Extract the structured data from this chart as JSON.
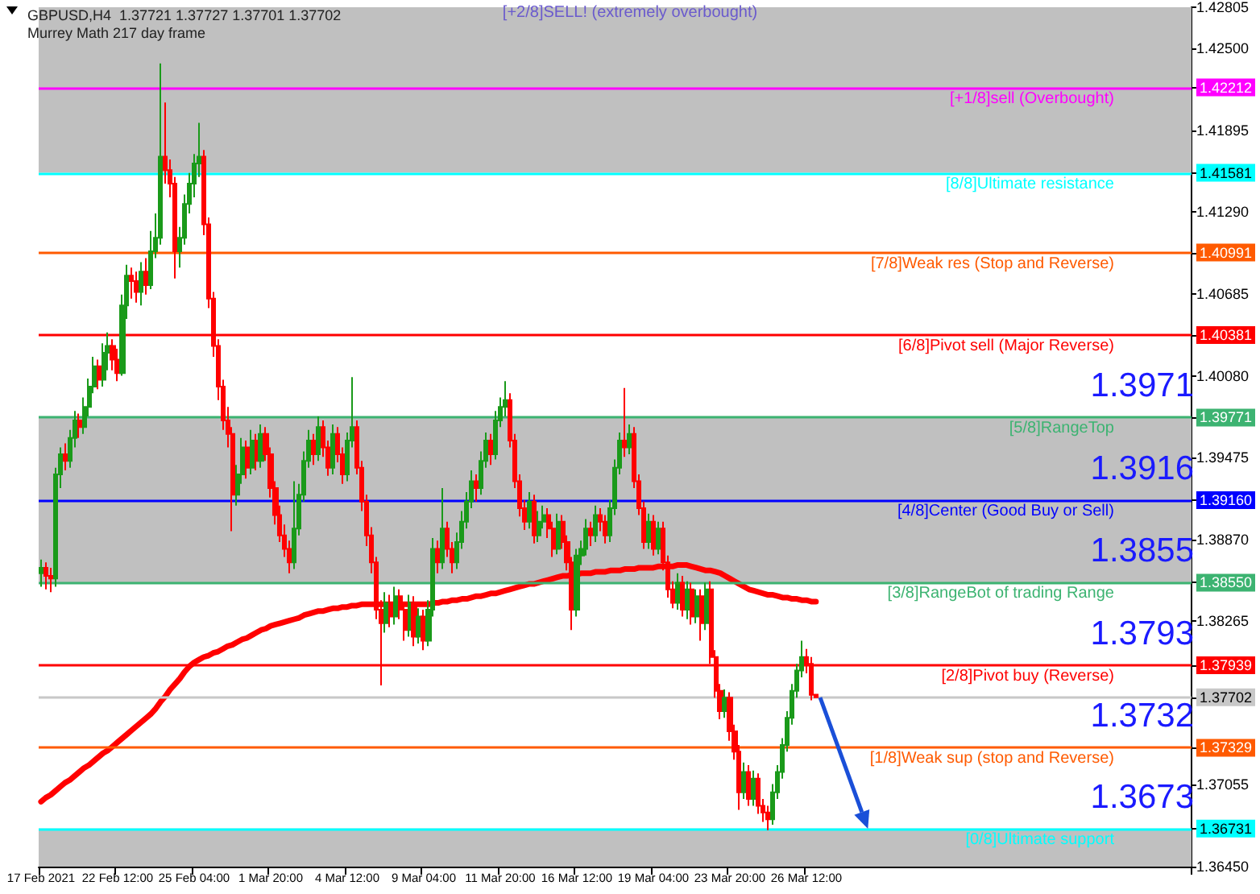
{
  "chart_data": {
    "type": "candlestick",
    "title": "GBPUSD,H4  1.37721 1.37727 1.37701 1.37702",
    "subtitle": "Murrey Math 217 day frame",
    "categories": [
      "17 Feb 2021",
      null,
      null,
      null,
      null,
      null,
      null,
      null,
      null,
      null,
      null,
      null,
      null,
      null,
      null,
      null,
      "22 Feb 12:00",
      null,
      null,
      null,
      null,
      null,
      null,
      null,
      null,
      null,
      null,
      null,
      null,
      null,
      null,
      null,
      "25 Feb 04:00",
      null,
      null,
      null,
      null,
      null,
      null,
      null,
      null,
      null,
      null,
      null,
      null,
      null,
      null,
      null,
      "1 Mar 20:00",
      null,
      null,
      null,
      null,
      null,
      null,
      null,
      null,
      null,
      null,
      null,
      null,
      null,
      null,
      null,
      "4 Mar 12:00",
      null,
      null,
      null,
      null,
      null,
      null,
      null,
      null,
      null,
      null,
      null,
      null,
      null,
      null,
      null,
      "9 Mar 04:00",
      null,
      null,
      null,
      null,
      null,
      null,
      null,
      null,
      null,
      null,
      null,
      null,
      null,
      null,
      null,
      "11 Mar 20:00",
      null,
      null,
      null,
      null,
      null,
      null,
      null,
      null,
      null,
      null,
      null,
      null,
      null,
      null,
      null,
      "16 Mar 12:00",
      null,
      null,
      null,
      null,
      null,
      null,
      null,
      null,
      null,
      null,
      null,
      null,
      null,
      null,
      null,
      "19 Mar 04:00",
      null,
      null,
      null,
      null,
      null,
      null,
      null,
      null,
      null,
      null,
      null,
      null,
      null,
      null,
      null,
      "23 Mar 20:00",
      null,
      null,
      null,
      null,
      null,
      null,
      null,
      null,
      null,
      null,
      null,
      null,
      null,
      null,
      null,
      "26 Mar 12:00",
      null,
      null
    ],
    "ohlc": [
      [
        1.3862,
        1.3872,
        1.3852,
        1.3866
      ],
      [
        1.3866,
        1.387,
        1.385,
        1.386
      ],
      [
        1.386,
        1.3866,
        1.3848,
        1.3858
      ],
      [
        1.3858,
        1.394,
        1.3852,
        1.3935
      ],
      [
        1.3935,
        1.3955,
        1.3925,
        1.395
      ],
      [
        1.395,
        1.3958,
        1.3938,
        1.3945
      ],
      [
        1.3945,
        1.3968,
        1.394,
        1.3962
      ],
      [
        1.3962,
        1.3982,
        1.3955,
        1.3975
      ],
      [
        1.3975,
        1.398,
        1.3962,
        1.397
      ],
      [
        1.397,
        1.3992,
        1.3965,
        1.3985
      ],
      [
        1.3985,
        1.4006,
        1.3978,
        1.4
      ],
      [
        1.4,
        1.4022,
        1.3995,
        1.4015
      ],
      [
        1.4015,
        1.402,
        1.3998,
        1.4005
      ],
      [
        1.4005,
        1.4032,
        1.4,
        1.4025
      ],
      [
        1.4025,
        1.404,
        1.4012,
        1.403
      ],
      [
        1.403,
        1.4035,
        1.4012,
        1.402
      ],
      [
        1.402,
        1.4028,
        1.4004,
        1.401
      ],
      [
        1.401,
        1.4068,
        1.4008,
        1.406
      ],
      [
        1.406,
        1.409,
        1.405,
        1.4082
      ],
      [
        1.4082,
        1.4088,
        1.4065,
        1.4078
      ],
      [
        1.4078,
        1.4085,
        1.4062,
        1.407
      ],
      [
        1.407,
        1.4092,
        1.406,
        1.4085
      ],
      [
        1.4085,
        1.4095,
        1.4068,
        1.4075
      ],
      [
        1.4075,
        1.4115,
        1.4072,
        1.41
      ],
      [
        1.41,
        1.4128,
        1.4095,
        1.411
      ],
      [
        1.411,
        1.4239,
        1.4105,
        1.417
      ],
      [
        1.417,
        1.421,
        1.415,
        1.416
      ],
      [
        1.416,
        1.4168,
        1.414,
        1.415
      ],
      [
        1.415,
        1.4155,
        1.408,
        1.41
      ],
      [
        1.41,
        1.4118,
        1.4088,
        1.411
      ],
      [
        1.411,
        1.4142,
        1.4105,
        1.4135
      ],
      [
        1.4135,
        1.4158,
        1.4128,
        1.415
      ],
      [
        1.415,
        1.4172,
        1.414,
        1.4165
      ],
      [
        1.4165,
        1.4195,
        1.4155,
        1.417
      ],
      [
        1.417,
        1.4175,
        1.4112,
        1.412
      ],
      [
        1.412,
        1.4125,
        1.4058,
        1.4065
      ],
      [
        1.4065,
        1.407,
        1.4022,
        1.403
      ],
      [
        1.403,
        1.4035,
        1.399,
        1.4
      ],
      [
        1.4,
        1.4005,
        1.3968,
        1.3975
      ],
      [
        1.3975,
        1.3985,
        1.3955,
        1.3965
      ],
      [
        1.3965,
        1.397,
        1.3893,
        1.392
      ],
      [
        1.392,
        1.3942,
        1.3912,
        1.3935
      ],
      [
        1.3935,
        1.3962,
        1.3928,
        1.3955
      ],
      [
        1.3955,
        1.396,
        1.3932,
        1.394
      ],
      [
        1.394,
        1.3968,
        1.3935,
        1.396
      ],
      [
        1.396,
        1.3965,
        1.3938,
        1.3945
      ],
      [
        1.3945,
        1.3972,
        1.394,
        1.3965
      ],
      [
        1.3965,
        1.397,
        1.3945,
        1.395
      ],
      [
        1.395,
        1.3955,
        1.3918,
        1.3925
      ],
      [
        1.3925,
        1.393,
        1.3898,
        1.3905
      ],
      [
        1.3905,
        1.3912,
        1.3885,
        1.389
      ],
      [
        1.389,
        1.3898,
        1.3874,
        1.388
      ],
      [
        1.388,
        1.3886,
        1.3862,
        1.387
      ],
      [
        1.387,
        1.393,
        1.3865,
        1.3895
      ],
      [
        1.3895,
        1.3928,
        1.389,
        1.392
      ],
      [
        1.392,
        1.3952,
        1.3915,
        1.3945
      ],
      [
        1.3945,
        1.3968,
        1.394,
        1.396
      ],
      [
        1.396,
        1.3965,
        1.3942,
        1.395
      ],
      [
        1.395,
        1.3978,
        1.3945,
        1.397
      ],
      [
        1.397,
        1.3975,
        1.3948,
        1.3955
      ],
      [
        1.3955,
        1.396,
        1.3934,
        1.394
      ],
      [
        1.394,
        1.3972,
        1.3935,
        1.3965
      ],
      [
        1.3965,
        1.397,
        1.3944,
        1.395
      ],
      [
        1.395,
        1.3955,
        1.3928,
        1.3935
      ],
      [
        1.3935,
        1.3966,
        1.393,
        1.396
      ],
      [
        1.396,
        1.4007,
        1.3955,
        1.397
      ],
      [
        1.397,
        1.3975,
        1.3935,
        1.394
      ],
      [
        1.394,
        1.3945,
        1.3908,
        1.3915
      ],
      [
        1.3915,
        1.392,
        1.3882,
        1.389
      ],
      [
        1.389,
        1.3896,
        1.3862,
        1.387
      ],
      [
        1.387,
        1.3874,
        1.3828,
        1.3835
      ],
      [
        1.3835,
        1.3842,
        1.3779,
        1.3825
      ],
      [
        1.3825,
        1.3848,
        1.3818,
        1.384
      ],
      [
        1.384,
        1.3846,
        1.3822,
        1.383
      ],
      [
        1.383,
        1.3852,
        1.3824,
        1.3845
      ],
      [
        1.3845,
        1.385,
        1.3828,
        1.3835
      ],
      [
        1.3835,
        1.384,
        1.3812,
        1.382
      ],
      [
        1.382,
        1.3846,
        1.3815,
        1.384
      ],
      [
        1.384,
        1.3845,
        1.3808,
        1.3815
      ],
      [
        1.3815,
        1.3836,
        1.381,
        1.383
      ],
      [
        1.383,
        1.3835,
        1.3805,
        1.3812
      ],
      [
        1.3812,
        1.3842,
        1.3808,
        1.3835
      ],
      [
        1.3835,
        1.3888,
        1.383,
        1.388
      ],
      [
        1.388,
        1.3886,
        1.3862,
        1.387
      ],
      [
        1.387,
        1.3925,
        1.3865,
        1.3895
      ],
      [
        1.3895,
        1.39,
        1.3874,
        1.388
      ],
      [
        1.388,
        1.3885,
        1.3862,
        1.387
      ],
      [
        1.387,
        1.3892,
        1.3865,
        1.3885
      ],
      [
        1.3885,
        1.3908,
        1.388,
        1.39
      ],
      [
        1.39,
        1.3922,
        1.3895,
        1.3915
      ],
      [
        1.3915,
        1.3938,
        1.391,
        1.393
      ],
      [
        1.393,
        1.3935,
        1.3915,
        1.3925
      ],
      [
        1.3925,
        1.3952,
        1.392,
        1.3945
      ],
      [
        1.3945,
        1.3966,
        1.394,
        1.396
      ],
      [
        1.396,
        1.3965,
        1.3942,
        1.395
      ],
      [
        1.395,
        1.3982,
        1.3946,
        1.3975
      ],
      [
        1.3975,
        1.3992,
        1.397,
        1.3985
      ],
      [
        1.3985,
        1.4004,
        1.3978,
        1.399
      ],
      [
        1.399,
        1.3995,
        1.3955,
        1.396
      ],
      [
        1.396,
        1.3965,
        1.3925,
        1.393
      ],
      [
        1.393,
        1.3935,
        1.3904,
        1.391
      ],
      [
        1.391,
        1.3916,
        1.3894,
        1.39
      ],
      [
        1.39,
        1.3922,
        1.3895,
        1.3915
      ],
      [
        1.3915,
        1.392,
        1.3884,
        1.389
      ],
      [
        1.389,
        1.3908,
        1.3885,
        1.39
      ],
      [
        1.39,
        1.3912,
        1.3895,
        1.3905
      ],
      [
        1.3905,
        1.391,
        1.3888,
        1.3895
      ],
      [
        1.3895,
        1.39,
        1.3874,
        1.388
      ],
      [
        1.388,
        1.3906,
        1.3876,
        1.39
      ],
      [
        1.39,
        1.3905,
        1.388,
        1.3885
      ],
      [
        1.3885,
        1.389,
        1.3864,
        1.387
      ],
      [
        1.387,
        1.3874,
        1.382,
        1.3835
      ],
      [
        1.3835,
        1.388,
        1.383,
        1.3875
      ],
      [
        1.3875,
        1.3886,
        1.3868,
        1.388
      ],
      [
        1.388,
        1.3902,
        1.3875,
        1.3895
      ],
      [
        1.3895,
        1.39,
        1.3882,
        1.389
      ],
      [
        1.389,
        1.3912,
        1.3885,
        1.3905
      ],
      [
        1.3905,
        1.391,
        1.3893,
        1.39
      ],
      [
        1.39,
        1.3905,
        1.3884,
        1.389
      ],
      [
        1.389,
        1.3916,
        1.3885,
        1.391
      ],
      [
        1.391,
        1.3946,
        1.3905,
        1.394
      ],
      [
        1.394,
        1.3966,
        1.3935,
        1.396
      ],
      [
        1.396,
        1.3999,
        1.3948,
        1.3955
      ],
      [
        1.3955,
        1.3972,
        1.395,
        1.3965
      ],
      [
        1.3965,
        1.397,
        1.3925,
        1.393
      ],
      [
        1.393,
        1.3935,
        1.3905,
        1.391
      ],
      [
        1.391,
        1.3915,
        1.388,
        1.3885
      ],
      [
        1.3885,
        1.3906,
        1.388,
        1.39
      ],
      [
        1.39,
        1.3905,
        1.3875,
        1.388
      ],
      [
        1.388,
        1.39,
        1.3876,
        1.3895
      ],
      [
        1.3895,
        1.39,
        1.3864,
        1.387
      ],
      [
        1.387,
        1.3875,
        1.3844,
        1.385
      ],
      [
        1.385,
        1.3856,
        1.3836,
        1.384
      ],
      [
        1.384,
        1.3862,
        1.3835,
        1.3855
      ],
      [
        1.3855,
        1.386,
        1.383,
        1.3835
      ],
      [
        1.3835,
        1.3856,
        1.3828,
        1.385
      ],
      [
        1.385,
        1.3855,
        1.3824,
        1.383
      ],
      [
        1.383,
        1.385,
        1.3825,
        1.3845
      ],
      [
        1.3845,
        1.385,
        1.3812,
        1.3825
      ],
      [
        1.3825,
        1.3855,
        1.382,
        1.385
      ],
      [
        1.385,
        1.3856,
        1.3795,
        1.38
      ],
      [
        1.38,
        1.3805,
        1.377,
        1.3775
      ],
      [
        1.3775,
        1.378,
        1.3754,
        1.376
      ],
      [
        1.376,
        1.3776,
        1.3755,
        1.377
      ],
      [
        1.377,
        1.3774,
        1.3738,
        1.3745
      ],
      [
        1.3745,
        1.375,
        1.3724,
        1.373
      ],
      [
        1.373,
        1.3735,
        1.3687,
        1.37
      ],
      [
        1.37,
        1.3722,
        1.3695,
        1.3715
      ],
      [
        1.3715,
        1.372,
        1.369,
        1.3695
      ],
      [
        1.3695,
        1.3716,
        1.369,
        1.371
      ],
      [
        1.371,
        1.3714,
        1.3684,
        1.369
      ],
      [
        1.369,
        1.3695,
        1.3678,
        1.3685
      ],
      [
        1.3685,
        1.369,
        1.3672,
        1.368
      ],
      [
        1.368,
        1.3706,
        1.3676,
        1.37
      ],
      [
        1.37,
        1.372,
        1.3695,
        1.3715
      ],
      [
        1.3715,
        1.374,
        1.371,
        1.3735
      ],
      [
        1.3735,
        1.376,
        1.373,
        1.3755
      ],
      [
        1.3755,
        1.378,
        1.375,
        1.3775
      ],
      [
        1.3775,
        1.3795,
        1.377,
        1.379
      ],
      [
        1.379,
        1.3812,
        1.3785,
        1.38
      ],
      [
        1.38,
        1.3806,
        1.3788,
        1.3795
      ],
      [
        1.3795,
        1.38,
        1.3768,
        1.3772
      ],
      [
        1.37721,
        1.37727,
        1.37701,
        1.37702
      ]
    ],
    "series": [
      {
        "type": "line",
        "color": "#ff0000",
        "values": [
          1.3693,
          1.3696,
          1.3698,
          1.3701,
          1.3704,
          1.3707,
          1.3709,
          1.3712,
          1.3715,
          1.3718,
          1.372,
          1.3723,
          1.3726,
          1.3729,
          1.3731,
          1.3734,
          1.3737,
          1.374,
          1.3743,
          1.3746,
          1.3749,
          1.3752,
          1.3755,
          1.3758,
          1.3762,
          1.3767,
          1.3771,
          1.3776,
          1.378,
          1.3784,
          1.3789,
          1.3793,
          1.3796,
          1.3798,
          1.38,
          1.3801,
          1.3803,
          1.3804,
          1.3806,
          1.3808,
          1.3809,
          1.3811,
          1.3813,
          1.3814,
          1.3816,
          1.3818,
          1.382,
          1.3821,
          1.3823,
          1.3824,
          1.3825,
          1.3826,
          1.3827,
          1.3828,
          1.3829,
          1.3831,
          1.3832,
          1.3833,
          1.3834,
          1.3834,
          1.3835,
          1.3836,
          1.3836,
          1.3837,
          1.3837,
          1.3838,
          1.3838,
          1.3839,
          1.3839,
          1.3839,
          1.3839,
          1.3839,
          1.3839,
          1.3839,
          1.3839,
          1.3839,
          1.3839,
          1.3839,
          1.3839,
          1.3839,
          1.3839,
          1.3839,
          1.384,
          1.384,
          1.3841,
          1.3841,
          1.3842,
          1.3842,
          1.3843,
          1.3843,
          1.3844,
          1.3845,
          1.3845,
          1.3846,
          1.3847,
          1.3847,
          1.3848,
          1.3849,
          1.385,
          1.3851,
          1.3852,
          1.3853,
          1.3854,
          1.3854,
          1.3855,
          1.3856,
          1.3857,
          1.3858,
          1.3859,
          1.386,
          1.386,
          1.3861,
          1.3861,
          1.3862,
          1.3862,
          1.3862,
          1.3863,
          1.3863,
          1.3863,
          1.3864,
          1.3864,
          1.3864,
          1.3865,
          1.3865,
          1.3865,
          1.3866,
          1.3866,
          1.3866,
          1.3866,
          1.3867,
          1.3867,
          1.3867,
          1.3867,
          1.3868,
          1.3868,
          1.3868,
          1.3867,
          1.3866,
          1.3865,
          1.3864,
          1.3864,
          1.3863,
          1.3862,
          1.386,
          1.3858,
          1.3856,
          1.3854,
          1.3852,
          1.385,
          1.3849,
          1.3848,
          1.3847,
          1.3846,
          1.3846,
          1.3845,
          1.3844,
          1.3844,
          1.3843,
          1.3843,
          1.3842,
          1.3842,
          1.3841,
          1.3841
        ]
      }
    ],
    "ylim": [
      1.3645,
      1.42805
    ],
    "yticks": [
      {
        "value": 1.3645,
        "label": "1.36450"
      },
      {
        "value": 1.37055,
        "label": "1.37055"
      },
      {
        "value": 1.38265,
        "label": "1.38265"
      },
      {
        "value": 1.3887,
        "label": "1.38870"
      },
      {
        "value": 1.39475,
        "label": "1.39475"
      },
      {
        "value": 1.4008,
        "label": "1.40080"
      },
      {
        "value": 1.40685,
        "label": "1.40685"
      },
      {
        "value": 1.4129,
        "label": "1.41290"
      },
      {
        "value": 1.41895,
        "label": "1.41895"
      },
      {
        "value": 1.425,
        "label": "1.42500"
      },
      {
        "value": 1.42805,
        "label": "1.42805"
      },
      {
        "value": 1.42212,
        "label": "1.42212"
      },
      {
        "value": 1.41581,
        "label": "1.41581"
      },
      {
        "value": 1.40991,
        "label": "1.40991"
      },
      {
        "value": 1.40381,
        "label": "1.40381"
      },
      {
        "value": 1.39771,
        "label": "1.39771"
      },
      {
        "value": 1.3916,
        "label": "1.39160"
      },
      {
        "value": 1.3855,
        "label": "1.38550"
      },
      {
        "value": 1.37939,
        "label": "1.37939"
      },
      {
        "value": 1.37702,
        "label": "1.37702"
      },
      {
        "value": 1.37329,
        "label": "1.37329"
      },
      {
        "value": 1.36731,
        "label": "1.36731"
      }
    ],
    "ref_lines": [
      {
        "axis": "y",
        "value": 1.42212,
        "label": "[+1/8]sell (Overbought)",
        "color": "#ff00ff"
      },
      {
        "axis": "y",
        "value": 1.41581,
        "label": "[8/8]Ultimate resistance",
        "color": "#00ffff"
      },
      {
        "axis": "y",
        "value": 1.40991,
        "label": "[7/8]Weak res (Stop and Reverse)",
        "color": "#ff5a00"
      },
      {
        "axis": "y",
        "value": 1.40381,
        "label": "[6/8]Pivot sell (Major Reverse)",
        "color": "#ff0000"
      },
      {
        "axis": "y",
        "value": 1.39771,
        "label": "[5/8]RangeTop",
        "color": "#3cb371"
      },
      {
        "axis": "y",
        "value": 1.3916,
        "label": "[4/8]Center (Good Buy or Sell)",
        "color": "#0000ff"
      },
      {
        "axis": "y",
        "value": 1.3855,
        "label": "[3/8]RangeBot of trading Range",
        "color": "#3cb371"
      },
      {
        "axis": "y",
        "value": 1.37939,
        "label": "[2/8]Pivot buy (Reverse)",
        "color": "#ff0000"
      },
      {
        "axis": "y",
        "value": 1.37702,
        "label": null,
        "color": "#c8c8c8"
      },
      {
        "axis": "y",
        "value": 1.37329,
        "label": "[1/8]Weak sup (stop and Reverse)",
        "color": "#ff5a00"
      },
      {
        "axis": "y",
        "value": 1.36731,
        "label": "[0/8]Ultimate support",
        "color": "#00ffff"
      }
    ],
    "bands": [
      {
        "axis": "y",
        "from": 1.41581,
        "to": 1.42805,
        "color": "#c0c0c0"
      },
      {
        "axis": "y",
        "from": 1.3855,
        "to": 1.39771,
        "color": "#c0c0c0"
      },
      {
        "axis": "y",
        "from": 1.3645,
        "to": 1.36731,
        "color": "#c0c0c0"
      }
    ],
    "annotations": [
      "[+2/8]SELL! (extremely overbought)",
      {
        "text": "1.3971",
        "y": 1.39771
      },
      {
        "text": "1.3916",
        "y": 1.3916
      },
      {
        "text": "1.3855",
        "y": 1.3855
      },
      {
        "text": "1.3793",
        "y": 1.37939
      },
      {
        "text": "1.3732",
        "y": 1.37329
      },
      {
        "text": "1.3673",
        "y": 1.36731
      }
    ],
    "grid": false,
    "marker": "none"
  }
}
